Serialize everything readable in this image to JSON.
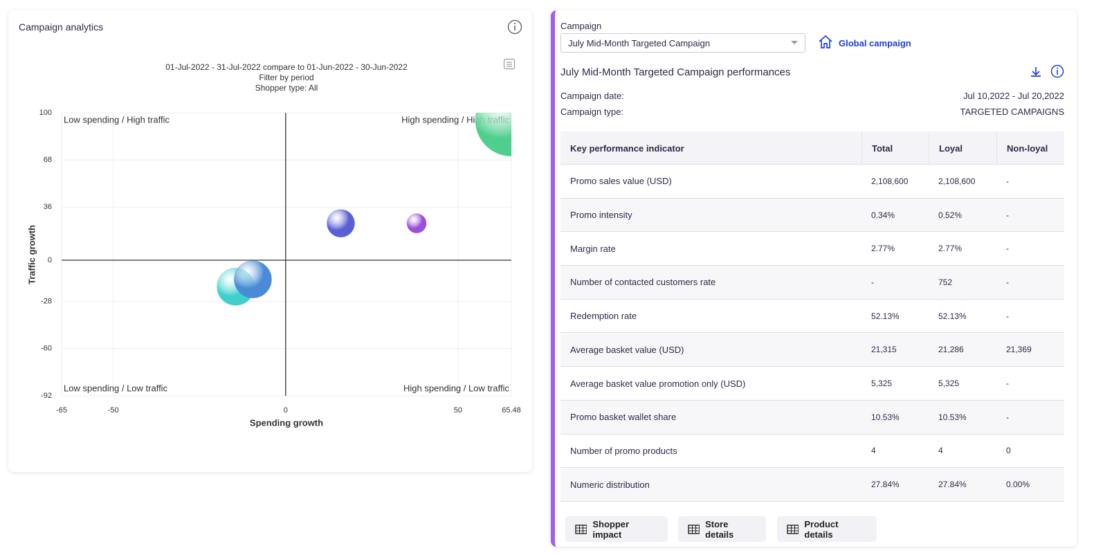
{
  "header": {
    "title": "Campaign analytics"
  },
  "chart_data": {
    "type": "scatter",
    "subtitle": [
      "01-Jul-2022 - 31-Jul-2022 compare to 01-Jun-2022 - 30-Jun-2022",
      "Filter by period",
      "Shopper type: All"
    ],
    "x_label": "Spending growth",
    "y_label": "Traffic growth",
    "xlim": [
      -65,
      65.48
    ],
    "ylim": [
      -92,
      100
    ],
    "xticks": [
      -65,
      -50,
      0,
      50,
      65.48
    ],
    "yticks": [
      -92,
      -60,
      -28,
      0,
      36,
      68,
      100
    ],
    "grid": true,
    "quadrant_labels": [
      "Low spending / High traffic",
      "High spending / High traffic",
      "Low spending / Low traffic",
      "High spending / Low traffic"
    ],
    "points": [
      {
        "x": 65.48,
        "y": 95,
        "size": 52,
        "color": "#4fcf8e"
      },
      {
        "x": 16,
        "y": 25,
        "size": 20,
        "color": "#5a5fd6"
      },
      {
        "x": 38,
        "y": 25,
        "size": 14,
        "color": "#9b4fd8"
      },
      {
        "x": -14.5,
        "y": -18,
        "size": 27,
        "color": "#3fd0cc"
      },
      {
        "x": -9.5,
        "y": -13,
        "size": 27,
        "color": "#4a8ad6"
      }
    ]
  },
  "campaign": {
    "label": "Campaign",
    "selected": "July Mid-Month Targeted Campaign",
    "global_link": "Global campaign",
    "title": "July Mid-Month Targeted Campaign performances",
    "date_label": "Campaign date:",
    "date": "Jul 10,2022 - Jul 20,2022",
    "type_label": "Campaign type:",
    "type": "TARGETED CAMPAIGNS"
  },
  "table": {
    "columns": [
      "Key performance indicator",
      "Total",
      "Loyal",
      "Non-loyal"
    ],
    "rows": [
      [
        "Promo sales value (USD)",
        "2,108,600",
        "2,108,600",
        "-"
      ],
      [
        "Promo intensity",
        "0.34%",
        "0.52%",
        "-"
      ],
      [
        "Margin rate",
        "2.77%",
        "2.77%",
        "-"
      ],
      [
        "Number of contacted customers rate",
        "-",
        "752",
        "-"
      ],
      [
        "Redemption rate",
        "52.13%",
        "52.13%",
        "-"
      ],
      [
        "Average basket value (USD)",
        "21,315",
        "21,286",
        "21,369"
      ],
      [
        "Average basket value promotion only (USD)",
        "5,325",
        "5,325",
        "-"
      ],
      [
        "Promo basket wallet share",
        "10.53%",
        "10.53%",
        "-"
      ],
      [
        "Number of promo products",
        "4",
        "4",
        "0"
      ],
      [
        "Numeric distribution",
        "27.84%",
        "27.84%",
        "0.00%"
      ]
    ]
  },
  "buttons": [
    "Shopper impact",
    "Store details",
    "Product details"
  ]
}
